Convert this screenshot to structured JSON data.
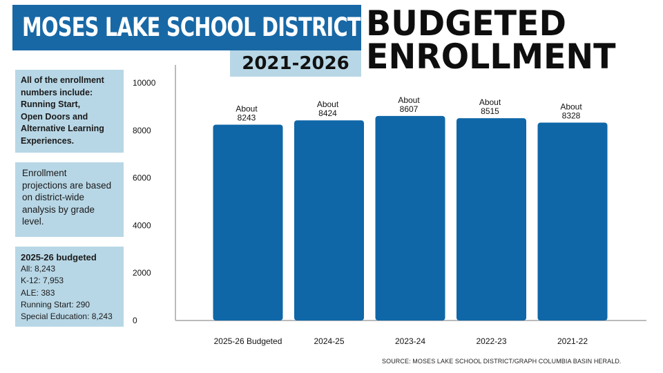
{
  "header": {
    "district": "MOSES LAKE SCHOOL DISTRICT",
    "years": "2021-2026",
    "headline_line1": "BUDGETED",
    "headline_line2": "ENROLLMENT"
  },
  "notes": {
    "box1_lines": [
      "All of the enrollment",
      "numbers include:",
      "Running Start,",
      "Open Doors and",
      "Alternative Learning",
      "Experiences."
    ],
    "box2_lines": [
      "Enrollment",
      "projections are based",
      "on district-wide",
      "analysis by grade",
      "level."
    ],
    "box3_heading": "2025-26 budgeted",
    "box3_lines": [
      "All: 8,243",
      "K-12: 7,953",
      "ALE: 383",
      "Running Start: 290",
      "Special Education: 8,243"
    ]
  },
  "source": "SOURCE: MOSES LAKE SCHOOL DISTRICT/GRAPH COLUMBIA BASIN HERALD.",
  "colors": {
    "banner": "#1868a6",
    "bar": "#0f67a8",
    "panel": "#b8d7e6"
  },
  "chart_data": {
    "type": "bar",
    "categories": [
      "2025-26 Budgeted",
      "2024-25",
      "2023-24",
      "2022-23",
      "2021-22"
    ],
    "values": [
      8243,
      8424,
      8607,
      8515,
      8328
    ],
    "data_labels": [
      {
        "prefix": "About",
        "value": "8243"
      },
      {
        "prefix": "About",
        "value": "8424"
      },
      {
        "prefix": "About",
        "value": "8607"
      },
      {
        "prefix": "About",
        "value": "8515"
      },
      {
        "prefix": "About",
        "value": "8328"
      }
    ],
    "yticks": [
      0,
      2000,
      4000,
      6000,
      8000,
      10000
    ],
    "ylim": [
      0,
      10000
    ],
    "grid": false
  }
}
